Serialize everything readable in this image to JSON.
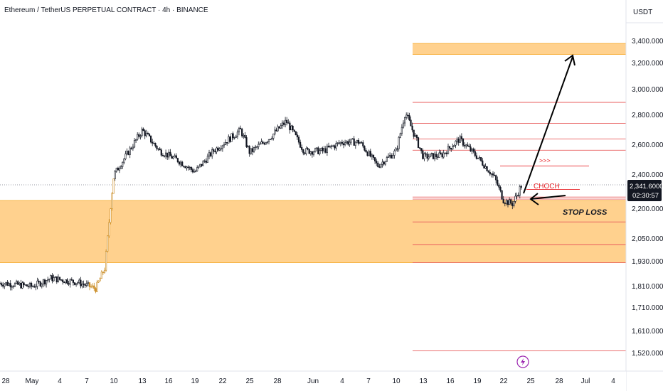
{
  "header": {
    "title": "Ethereum / TetherUS PERPETUAL CONTRACT · 4h · BINANCE",
    "currency": "USDT"
  },
  "current_price": {
    "value": "2,341.6000",
    "countdown": "02:30:57"
  },
  "annotations": {
    "choch": "CHOCH",
    "arrows": ">>>",
    "stop_loss": "STOP LOSS"
  },
  "colors": {
    "candle_up": "#131722",
    "candle_down": "#131722",
    "zone_fill": "#FFC97A",
    "zone_line": "#F5A623",
    "level_line": "#E85C5C",
    "annotation_red": "#E8272C",
    "price_badge": "#131722",
    "event_icon": "#9C27B0"
  },
  "chart_data": {
    "type": "candlestick",
    "timeframe": "4h",
    "x_tick_labels": [
      "28",
      "May",
      "4",
      "7",
      "10",
      "13",
      "16",
      "19",
      "22",
      "25",
      "28",
      "Jun",
      "4",
      "7",
      "10",
      "13",
      "16",
      "19",
      "22",
      "25",
      "28",
      "Jul",
      "4"
    ],
    "y_tick_labels": [
      "3,400.0000",
      "3,200.0000",
      "3,000.0000",
      "2,800.0000",
      "2,600.0000",
      "2,400.0000",
      "2,200.0000",
      "2,050.0000",
      "1,930.0000",
      "1,810.0000",
      "1,710.0000",
      "1,610.0000",
      "1,520.0000"
    ],
    "price_path": [
      {
        "date": "Apr 28",
        "price": 1825
      },
      {
        "date": "May 1",
        "price": 1810
      },
      {
        "date": "May 3",
        "price": 1850
      },
      {
        "date": "May 6",
        "price": 1830
      },
      {
        "date": "May 8",
        "price": 1800
      },
      {
        "date": "May 9",
        "price": 1900
      },
      {
        "date": "May 10",
        "price": 2400
      },
      {
        "date": "May 12",
        "price": 2600
      },
      {
        "date": "May 13",
        "price": 2700
      },
      {
        "date": "May 15",
        "price": 2560
      },
      {
        "date": "May 17",
        "price": 2500
      },
      {
        "date": "May 19",
        "price": 2420
      },
      {
        "date": "May 21",
        "price": 2560
      },
      {
        "date": "May 24",
        "price": 2700
      },
      {
        "date": "May 25",
        "price": 2550
      },
      {
        "date": "May 27",
        "price": 2640
      },
      {
        "date": "May 29",
        "price": 2760
      },
      {
        "date": "May 31",
        "price": 2560
      },
      {
        "date": "Jun 2",
        "price": 2560
      },
      {
        "date": "Jun 4",
        "price": 2620
      },
      {
        "date": "Jun 6",
        "price": 2620
      },
      {
        "date": "Jun 8",
        "price": 2460
      },
      {
        "date": "Jun 10",
        "price": 2560
      },
      {
        "date": "Jun 11",
        "price": 2820
      },
      {
        "date": "Jun 13",
        "price": 2520
      },
      {
        "date": "Jun 15",
        "price": 2530
      },
      {
        "date": "Jun 17",
        "price": 2640
      },
      {
        "date": "Jun 19",
        "price": 2520
      },
      {
        "date": "Jun 21",
        "price": 2380
      },
      {
        "date": "Jun 22",
        "price": 2250
      },
      {
        "date": "Jun 23",
        "price": 2230
      },
      {
        "date": "Jun 24",
        "price": 2341.6
      }
    ],
    "zones": [
      {
        "name": "target zone",
        "from": 3280,
        "to": 3380
      },
      {
        "name": "demand zone",
        "from": 1925,
        "to": 2250
      }
    ],
    "levels": [
      2900,
      2745,
      2640,
      2565,
      2460,
      2315,
      2270,
      2258,
      2135,
      2020,
      1925,
      1530
    ],
    "event_marker": {
      "date": "Jun 24"
    }
  }
}
